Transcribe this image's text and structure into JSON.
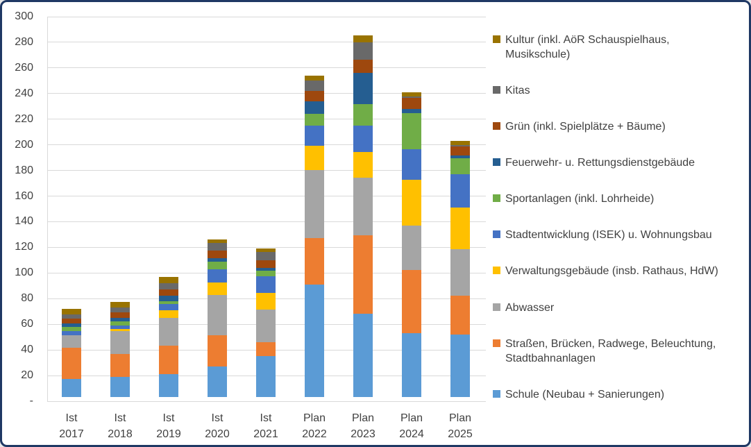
{
  "frame": {
    "background": "#ffffff",
    "border_color": "#1f3864",
    "gridline_color": "#d9d9d9",
    "text_color": "#404040"
  },
  "chart_data": {
    "type": "bar",
    "stacked": true,
    "grid": true,
    "legend_position": "right",
    "ylim": [
      0,
      300
    ],
    "ytick_step": 20,
    "zero_tick_label": "-",
    "categories": [
      {
        "line1": "Ist",
        "line2": "2017"
      },
      {
        "line1": "Ist",
        "line2": "2018"
      },
      {
        "line1": "Ist",
        "line2": "2019"
      },
      {
        "line1": "Ist",
        "line2": "2020"
      },
      {
        "line1": "Ist",
        "line2": "2021"
      },
      {
        "line1": "Plan",
        "line2": "2022"
      },
      {
        "line1": "Plan",
        "line2": "2023"
      },
      {
        "line1": "Plan",
        "line2": "2024"
      },
      {
        "line1": "Plan",
        "line2": "2025"
      }
    ],
    "series": [
      {
        "name": "Schule (Neubau + Sanierungen)",
        "color": "#5b9bd5",
        "values": [
          14,
          15.5,
          18,
          24,
          32,
          88,
          65,
          50,
          49
        ]
      },
      {
        "name": "Straßen, Brücken, Radwege, Beleuchtung, Stadtbahnanlagen",
        "color": "#ed7d31",
        "values": [
          24.5,
          18,
          22,
          24,
          11,
          36,
          61,
          49,
          30
        ]
      },
      {
        "name": "Abwasser",
        "color": "#a5a5a5",
        "values": [
          9.5,
          18,
          22,
          31.5,
          25.5,
          53,
          45,
          35,
          36.5
        ]
      },
      {
        "name": "Verwaltungsgebäude (insb. Rathaus, HdW)",
        "color": "#ffc000",
        "values": [
          0,
          1.5,
          5.5,
          10,
          13,
          19,
          20,
          35.5,
          32.5
        ]
      },
      {
        "name": "Stadtentwicklung (ISEK) u. Wohnungsbau",
        "color": "#4472c4",
        "values": [
          3.5,
          3,
          5,
          10,
          13,
          16,
          20.5,
          24,
          26
        ]
      },
      {
        "name": "Sportanlagen (inkl. Lohrheide)",
        "color": "#70ad47",
        "values": [
          3,
          3,
          2.5,
          6,
          4,
          9,
          17,
          28,
          12.5
        ]
      },
      {
        "name": "Feuerwehr- u. Rettungsdienstgebäude",
        "color": "#255e91",
        "values": [
          3,
          3,
          4,
          3,
          2.5,
          10,
          24.5,
          3,
          2
        ]
      },
      {
        "name": "Grün (inkl. Spielplätze + Bäume)",
        "color": "#9e480e",
        "values": [
          3.5,
          4,
          5,
          6,
          5.5,
          8,
          10,
          9,
          7
        ]
      },
      {
        "name": "Kitas",
        "color": "#696969",
        "values": [
          3.5,
          4,
          5,
          6,
          6.5,
          8,
          13.5,
          1,
          1
        ]
      },
      {
        "name": "Kultur (inkl. AöR Schauspielhaus, Musikschule)",
        "color": "#997300",
        "values": [
          4.5,
          4,
          5,
          2.5,
          3,
          4,
          5.5,
          3.5,
          3.5
        ]
      }
    ],
    "totals": [
      68,
      74,
      94,
      123,
      116,
      251,
      282,
      238,
      200
    ]
  }
}
